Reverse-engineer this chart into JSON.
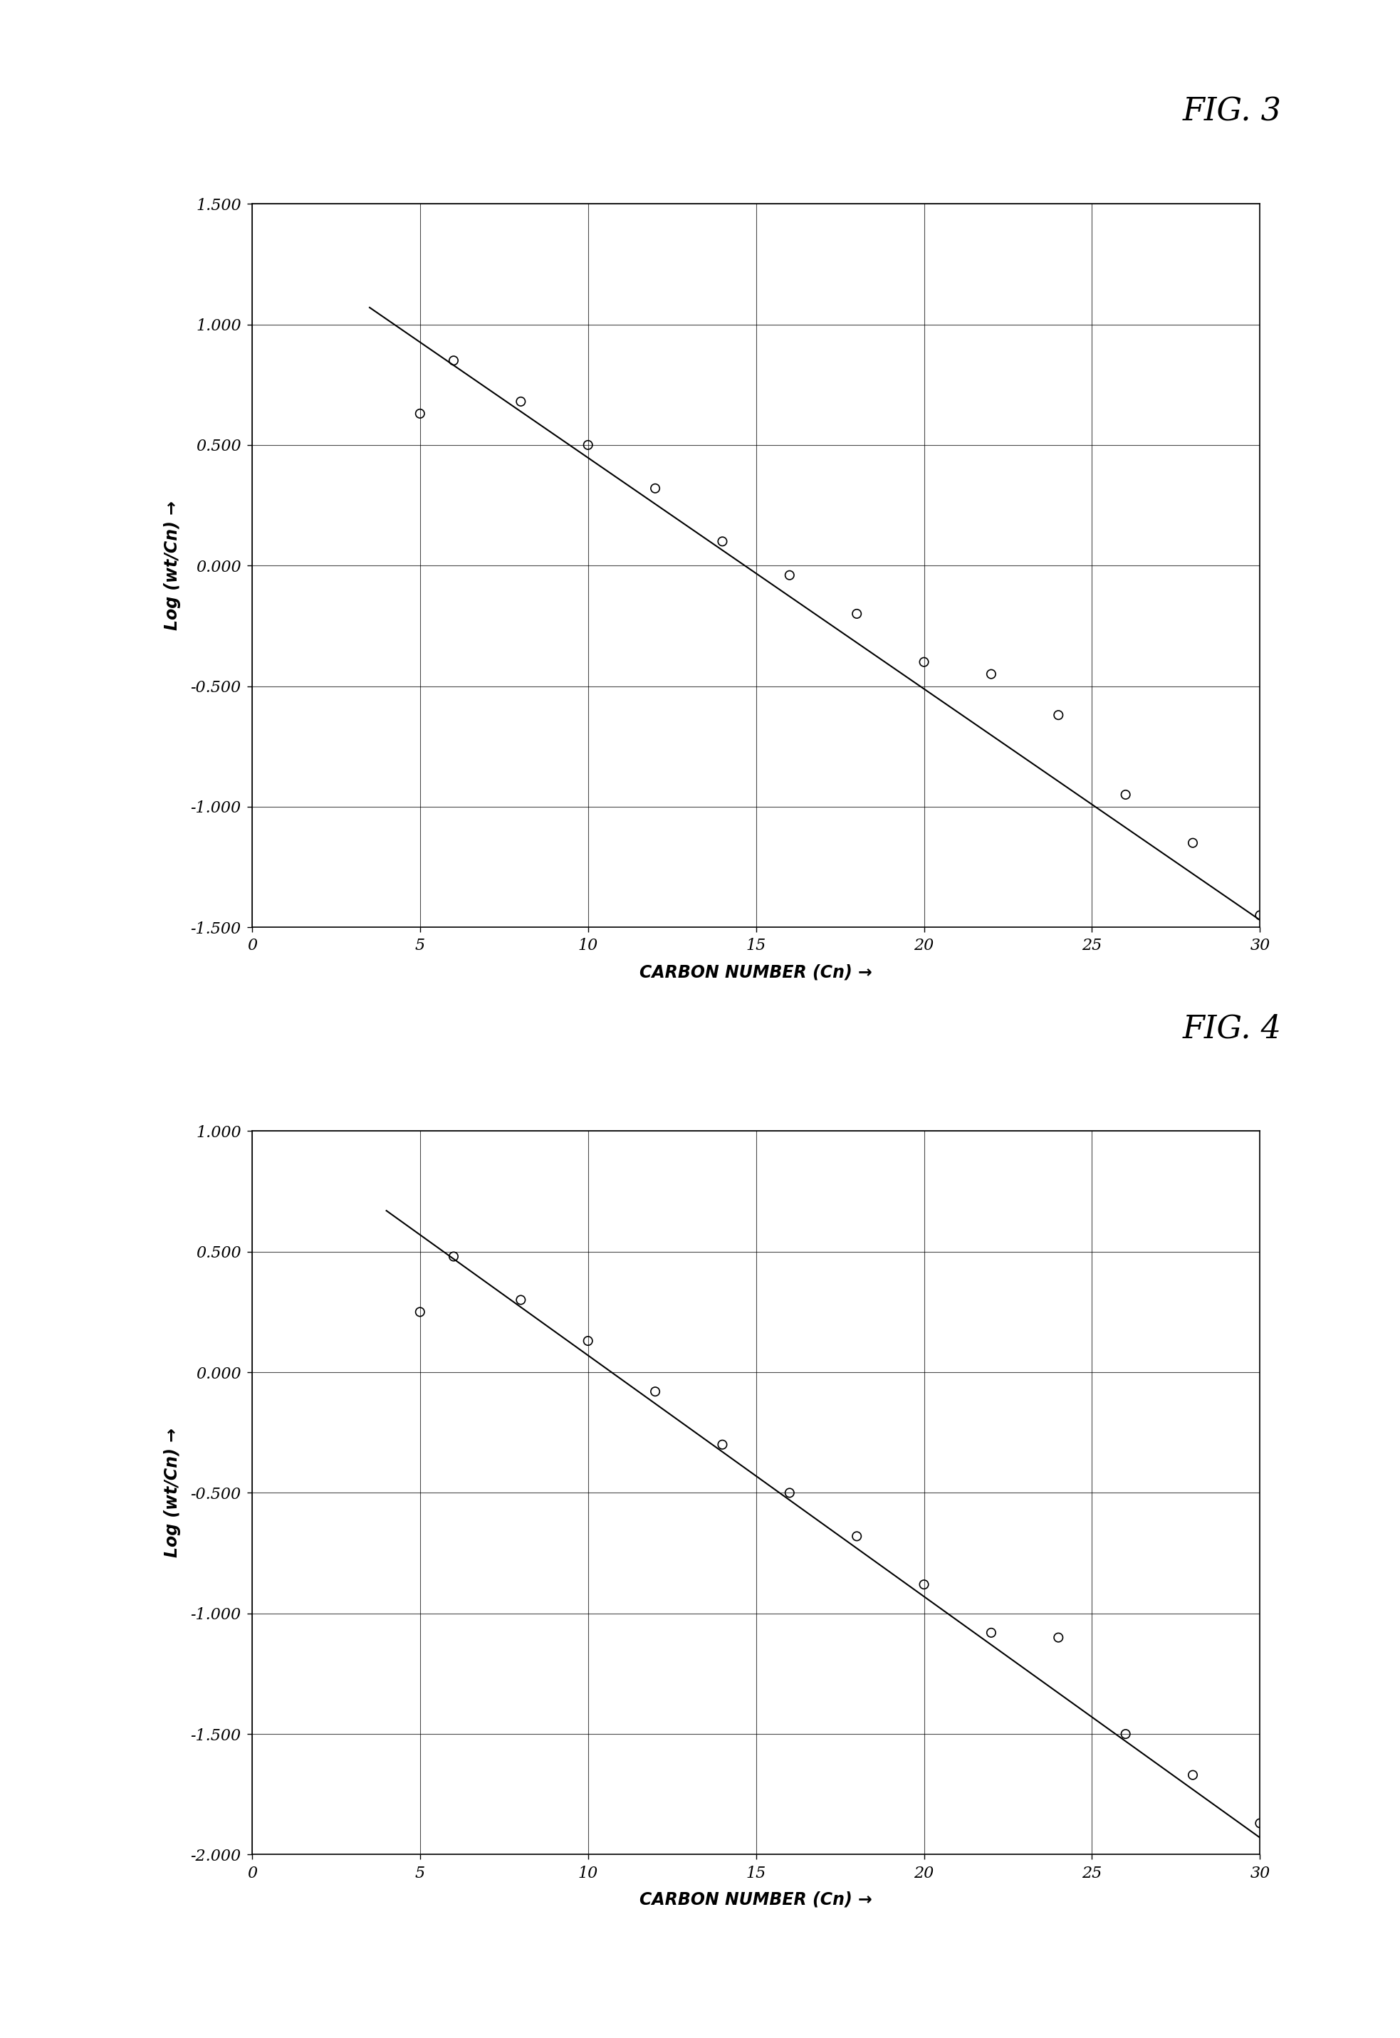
{
  "fig3": {
    "title": "FIG. 3",
    "scatter_x": [
      5,
      6,
      8,
      10,
      12,
      14,
      16,
      18,
      20,
      22,
      24,
      26,
      28,
      30
    ],
    "scatter_y": [
      0.63,
      0.85,
      0.68,
      0.5,
      0.32,
      0.1,
      -0.04,
      -0.2,
      -0.4,
      -0.45,
      -0.62,
      -0.95,
      -1.15,
      -1.45
    ],
    "line_x": [
      3.5,
      30
    ],
    "line_y": [
      1.07,
      -1.47
    ],
    "xlim": [
      0,
      30
    ],
    "ylim": [
      -1.5,
      1.5
    ],
    "xticks": [
      0,
      5,
      10,
      15,
      20,
      25,
      30
    ],
    "yticks": [
      -1.5,
      -1.0,
      -0.5,
      0.0,
      0.5,
      1.0,
      1.5
    ],
    "ytick_labels": [
      "-1.500",
      "-1.000",
      "-0.500",
      "0.000",
      "0.500",
      "1.000",
      "1.500"
    ],
    "xlabel": "CARBON NUMBER (Cn) →",
    "ylabel": "Log (wt/Cn) →"
  },
  "fig4": {
    "title": "FIG. 4",
    "scatter_x": [
      5,
      6,
      8,
      10,
      12,
      14,
      16,
      18,
      20,
      22,
      24,
      26,
      28,
      30
    ],
    "scatter_y": [
      0.25,
      0.48,
      0.3,
      0.13,
      -0.08,
      -0.3,
      -0.5,
      -0.68,
      -0.88,
      -1.08,
      -1.1,
      -1.5,
      -1.67,
      -1.87
    ],
    "line_x": [
      4.0,
      30
    ],
    "line_y": [
      0.67,
      -1.93
    ],
    "xlim": [
      0,
      30
    ],
    "ylim": [
      -2.0,
      1.0
    ],
    "xticks": [
      0,
      5,
      10,
      15,
      20,
      25,
      30
    ],
    "yticks": [
      -2.0,
      -1.5,
      -1.0,
      -0.5,
      0.0,
      0.5,
      1.0
    ],
    "ytick_labels": [
      "-2.000",
      "-1.500",
      "-1.000",
      "-0.500",
      "0.000",
      "0.500",
      "1.000"
    ],
    "xlabel": "CARBON NUMBER (Cn) →",
    "ylabel": "Log (wt/Cn) →"
  }
}
